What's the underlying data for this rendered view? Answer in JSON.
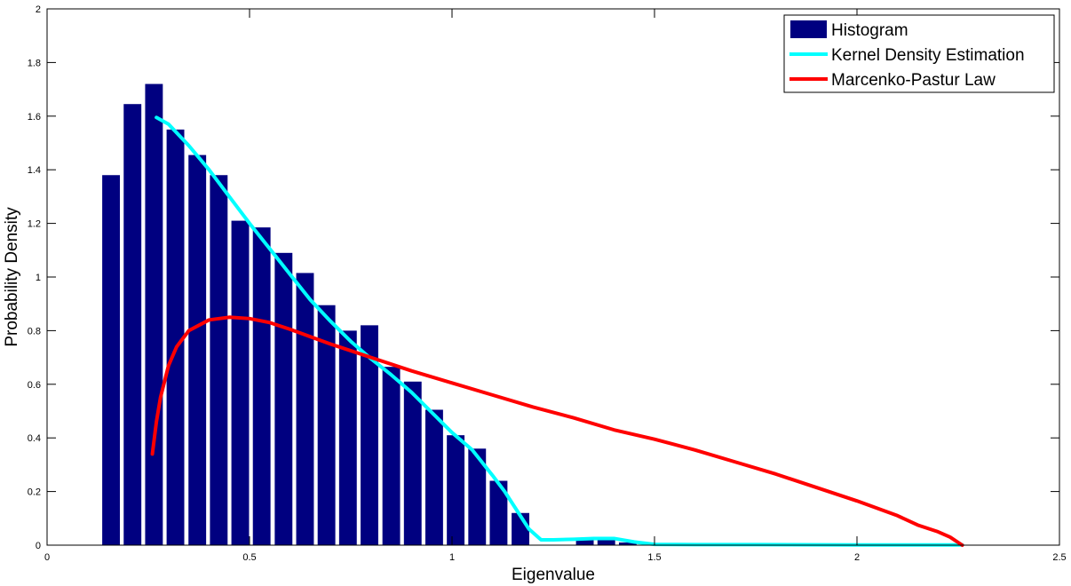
{
  "chart_data": {
    "type": "bar",
    "title": "",
    "xlabel": "Eigenvalue",
    "ylabel": "Probability Density",
    "xlim": [
      0,
      2.5
    ],
    "ylim": [
      0,
      2
    ],
    "xticks": [
      {
        "value": 0,
        "label": "0"
      },
      {
        "value": 0.5,
        "label": "0.5"
      },
      {
        "value": 1,
        "label": "1"
      },
      {
        "value": 1.5,
        "label": "1.5"
      },
      {
        "value": 2,
        "label": "2"
      },
      {
        "value": 2.5,
        "label": "2.5"
      }
    ],
    "yticks": [
      {
        "value": 0,
        "label": "0"
      },
      {
        "value": 0.2,
        "label": "0.2"
      },
      {
        "value": 0.4,
        "label": "0.4"
      },
      {
        "value": 0.6,
        "label": "0.6"
      },
      {
        "value": 0.8,
        "label": "0.8"
      },
      {
        "value": 1,
        "label": "1"
      },
      {
        "value": 1.2,
        "label": "1.2"
      },
      {
        "value": 1.4,
        "label": "1.4"
      },
      {
        "value": 1.6,
        "label": "1.6"
      },
      {
        "value": 1.8,
        "label": "1.8"
      },
      {
        "value": 2,
        "label": "2"
      }
    ],
    "grid": false,
    "legend_position": "top-right",
    "histogram": {
      "name": "Histogram",
      "color": "#000080",
      "bin_width": 0.0532,
      "centers": [
        0.158,
        0.211,
        0.264,
        0.317,
        0.371,
        0.424,
        0.477,
        0.53,
        0.584,
        0.637,
        0.69,
        0.743,
        0.796,
        0.85,
        0.903,
        0.956,
        1.009,
        1.062,
        1.115,
        1.169,
        1.222,
        1.275,
        1.328,
        1.381,
        1.434
      ],
      "values": [
        1.38,
        1.645,
        1.72,
        1.55,
        1.455,
        1.38,
        1.21,
        1.185,
        1.09,
        1.015,
        0.895,
        0.8,
        0.82,
        0.665,
        0.61,
        0.505,
        0.41,
        0.36,
        0.24,
        0.12,
        0.0,
        0.0,
        0.02,
        0.02,
        0.01
      ]
    },
    "series": [
      {
        "name": "Kernel Density Estimation",
        "type": "line",
        "color": "#00ffff",
        "x": [
          0.27,
          0.3,
          0.35,
          0.4,
          0.45,
          0.5,
          0.55,
          0.6,
          0.65,
          0.7,
          0.75,
          0.8,
          0.85,
          0.9,
          0.95,
          1.0,
          1.05,
          1.1,
          1.13,
          1.16,
          1.19,
          1.22,
          1.25,
          1.3,
          1.35,
          1.4,
          1.45,
          1.5,
          1.6,
          1.75,
          2.0,
          2.26
        ],
        "y": [
          1.595,
          1.57,
          1.49,
          1.4,
          1.3,
          1.2,
          1.105,
          1.01,
          0.915,
          0.835,
          0.76,
          0.695,
          0.635,
          0.57,
          0.495,
          0.42,
          0.355,
          0.26,
          0.2,
          0.13,
          0.06,
          0.02,
          0.02,
          0.022,
          0.025,
          0.025,
          0.012,
          0.003,
          0.002,
          0.002,
          0.001,
          0.001
        ]
      },
      {
        "name": "Marcenko-Pastur Law",
        "type": "line",
        "color": "#ff0000",
        "x": [
          0.26,
          0.27,
          0.28,
          0.3,
          0.32,
          0.35,
          0.4,
          0.45,
          0.5,
          0.55,
          0.6,
          0.7,
          0.8,
          0.9,
          1.0,
          1.1,
          1.2,
          1.3,
          1.4,
          1.5,
          1.6,
          1.7,
          1.8,
          1.9,
          2.0,
          2.1,
          2.15,
          2.2,
          2.23,
          2.25,
          2.26
        ],
        "y": [
          0.34,
          0.46,
          0.55,
          0.67,
          0.74,
          0.8,
          0.84,
          0.85,
          0.845,
          0.83,
          0.805,
          0.75,
          0.7,
          0.65,
          0.605,
          0.56,
          0.515,
          0.475,
          0.43,
          0.395,
          0.355,
          0.31,
          0.265,
          0.215,
          0.165,
          0.11,
          0.075,
          0.05,
          0.03,
          0.01,
          0.0
        ]
      }
    ]
  }
}
